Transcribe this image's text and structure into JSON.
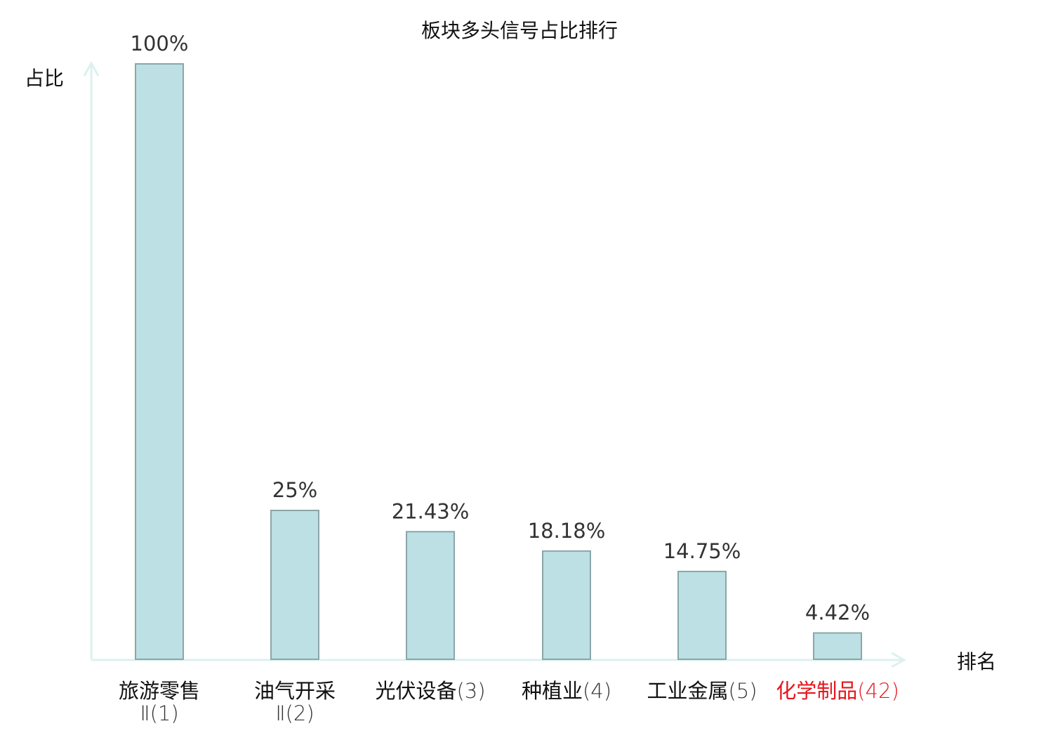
{
  "chart_data": {
    "type": "bar",
    "title": "板块多头信号占比排行",
    "xlabel": "排名",
    "ylabel": "占比",
    "ylim": [
      0,
      100
    ],
    "grid": false,
    "categories": [
      {
        "name": "旅游零售",
        "line2": "Ⅱ(1)",
        "rank": 1,
        "highlight": false
      },
      {
        "name": "油气开采",
        "line2": "Ⅱ(2)",
        "rank": 2,
        "highlight": false
      },
      {
        "name": "光伏设备",
        "suffix": "(3)",
        "rank": 3,
        "highlight": false
      },
      {
        "name": "种植业",
        "suffix": "(4)",
        "rank": 4,
        "highlight": false
      },
      {
        "name": "工业金属",
        "suffix": "(5)",
        "rank": 5,
        "highlight": false
      },
      {
        "name": "化学制品",
        "suffix": "(42)",
        "rank": 42,
        "highlight": true
      }
    ],
    "values": [
      100,
      25,
      21.43,
      18.18,
      14.75,
      4.42
    ],
    "value_labels": [
      "100%",
      "25%",
      "21.43%",
      "18.18%",
      "14.75%",
      "4.42%"
    ],
    "colors": {
      "bar_fill": "#bce0e3",
      "bar_stroke": "#8aa6a9",
      "axis": "#dcf1ee",
      "highlight": "#e8141c",
      "text": "#222222"
    }
  }
}
